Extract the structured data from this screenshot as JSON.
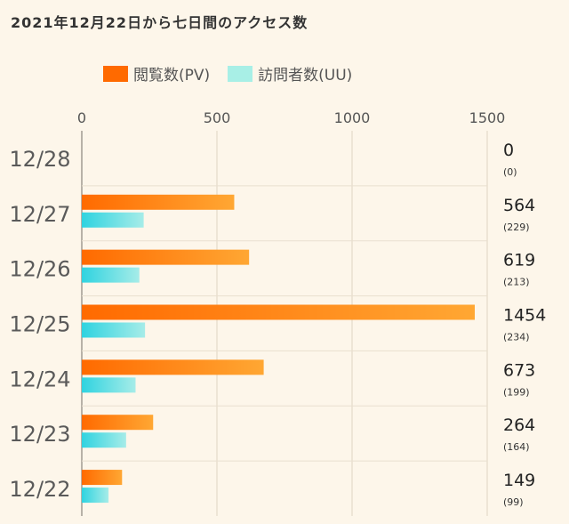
{
  "page": {
    "title": "2021年12月22日から七日間のアクセス数"
  },
  "legend": {
    "pv_label": "閲覧数(PV)",
    "uu_label": "訪問者数(UU)"
  },
  "colors": {
    "pv_start": "#ff6a00",
    "pv_end": "#ffa733",
    "uu_start": "#2fd3e0",
    "uu_end": "#a6ece8",
    "legend_uu": "#a8efe6",
    "grid": "#e9dfcf",
    "axis": "#b8b2a8"
  },
  "chart_data": {
    "type": "bar",
    "orientation": "horizontal",
    "title": "2021年12月22日から七日間のアクセス数",
    "categories": [
      "12/28",
      "12/27",
      "12/26",
      "12/25",
      "12/24",
      "12/23",
      "12/22"
    ],
    "series": [
      {
        "name": "閲覧数(PV)",
        "values": [
          0,
          564,
          619,
          1454,
          673,
          264,
          149
        ]
      },
      {
        "name": "訪問者数(UU)",
        "values": [
          0,
          229,
          213,
          234,
          199,
          164,
          99
        ]
      }
    ],
    "value_labels": [
      "0",
      "564",
      "619",
      "1454",
      "673",
      "264",
      "149"
    ],
    "sub_labels": [
      "(0)",
      "(229)",
      "(213)",
      "(234)",
      "(199)",
      "(164)",
      "(99)"
    ],
    "xlim": [
      0,
      1500
    ],
    "xticks": [
      "0",
      "500",
      "1000",
      "1500"
    ],
    "legend_position": "top",
    "grid": true
  }
}
